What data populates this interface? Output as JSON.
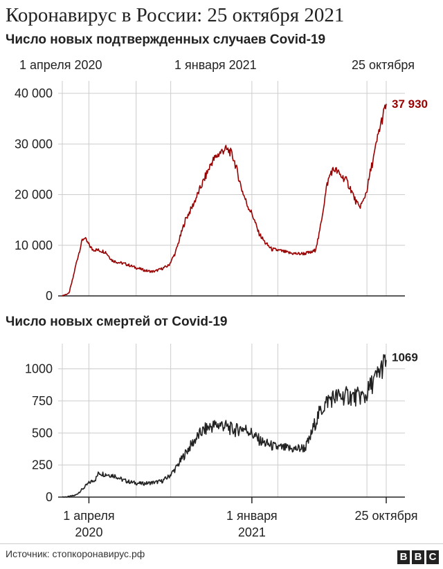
{
  "title": "Коронавирус в России: 25 октября 2021",
  "source": "Источник: стопкоронавирус.рф",
  "logo": [
    "B",
    "B",
    "C"
  ],
  "colors": {
    "cases": "#990000",
    "deaths": "#222222",
    "grid": "#cccccc",
    "axis": "#222222"
  },
  "chart_data": [
    {
      "type": "line",
      "title": "Число новых подтвержденных случаев Covid-19",
      "top_labels": [
        "1 апреля 2020",
        "1 января 2021",
        "25 октября"
      ],
      "ylim": [
        0,
        40000
      ],
      "y_ticks": [
        0,
        10000,
        20000,
        30000,
        40000
      ],
      "y_tick_labels": [
        "0",
        "10 000",
        "20 000",
        "30 000",
        "40 000"
      ],
      "last_value_label": "37 930",
      "grid": true,
      "x_unit": "days since 2020-03-22",
      "series": [
        {
          "values": [
            [
              0,
              50
            ],
            [
              10,
              500
            ],
            [
              16,
              3500
            ],
            [
              21,
              6500
            ],
            [
              26,
              9000
            ],
            [
              30,
              11000
            ],
            [
              33,
              11500
            ],
            [
              38,
              10500
            ],
            [
              45,
              9200
            ],
            [
              55,
              9000
            ],
            [
              65,
              8700
            ],
            [
              75,
              7000
            ],
            [
              85,
              6600
            ],
            [
              95,
              6300
            ],
            [
              110,
              5600
            ],
            [
              125,
              5000
            ],
            [
              135,
              4800
            ],
            [
              140,
              4900
            ],
            [
              150,
              5400
            ],
            [
              160,
              6000
            ],
            [
              170,
              8500
            ],
            [
              178,
              12000
            ],
            [
              185,
              15000
            ],
            [
              195,
              17500
            ],
            [
              205,
              20500
            ],
            [
              215,
              23500
            ],
            [
              225,
              26500
            ],
            [
              235,
              28000
            ],
            [
              244,
              29000
            ],
            [
              252,
              28500
            ],
            [
              258,
              27000
            ],
            [
              264,
              24000
            ],
            [
              270,
              21000
            ],
            [
              278,
              18000
            ],
            [
              286,
              16000
            ],
            [
              295,
              12500
            ],
            [
              305,
              10500
            ],
            [
              315,
              9200
            ],
            [
              325,
              9000
            ],
            [
              340,
              8500
            ],
            [
              355,
              8300
            ],
            [
              365,
              8400
            ],
            [
              375,
              8600
            ],
            [
              380,
              9000
            ],
            [
              386,
              12000
            ],
            [
              392,
              17000
            ],
            [
              398,
              22000
            ],
            [
              404,
              24500
            ],
            [
              410,
              25000
            ],
            [
              418,
              23800
            ],
            [
              426,
              23000
            ],
            [
              434,
              21000
            ],
            [
              440,
              19000
            ],
            [
              446,
              17500
            ],
            [
              452,
              18500
            ],
            [
              458,
              21000
            ],
            [
              464,
              25000
            ],
            [
              470,
              28500
            ],
            [
              476,
              32500
            ],
            [
              482,
              35500
            ],
            [
              487,
              37930
            ]
          ]
        }
      ]
    },
    {
      "type": "line",
      "title": "Число новых смертей от Covid-19",
      "x_tick_labels": [
        {
          "x": 40,
          "line1": "1 апреля",
          "line2": "2020"
        },
        {
          "x": 285,
          "line1": "1 января",
          "line2": "2021"
        },
        {
          "x": 487,
          "line1": "25 октября",
          "line2": ""
        }
      ],
      "ylim": [
        0,
        1100
      ],
      "y_ticks": [
        0,
        250,
        500,
        750,
        1000
      ],
      "y_tick_labels": [
        "0",
        "250",
        "500",
        "750",
        "1000"
      ],
      "last_value_label": "1069",
      "grid": true,
      "x_unit": "days since 2020-03-22",
      "series": [
        {
          "values": [
            [
              0,
              0
            ],
            [
              10,
              3
            ],
            [
              20,
              15
            ],
            [
              30,
              60
            ],
            [
              40,
              110
            ],
            [
              50,
              140
            ],
            [
              55,
              190
            ],
            [
              62,
              180
            ],
            [
              70,
              175
            ],
            [
              80,
              165
            ],
            [
              90,
              135
            ],
            [
              100,
              120
            ],
            [
              110,
              110
            ],
            [
              120,
              105
            ],
            [
              130,
              110
            ],
            [
              140,
              115
            ],
            [
              150,
              125
            ],
            [
              160,
              160
            ],
            [
              170,
              220
            ],
            [
              180,
              300
            ],
            [
              190,
              380
            ],
            [
              200,
              450
            ],
            [
              210,
              510
            ],
            [
              220,
              545
            ],
            [
              230,
              560
            ],
            [
              240,
              565
            ],
            [
              250,
              540
            ],
            [
              260,
              520
            ],
            [
              270,
              540
            ],
            [
              280,
              520
            ],
            [
              290,
              470
            ],
            [
              300,
              430
            ],
            [
              310,
              410
            ],
            [
              320,
              390
            ],
            [
              335,
              380
            ],
            [
              350,
              375
            ],
            [
              365,
              385
            ],
            [
              372,
              450
            ],
            [
              378,
              550
            ],
            [
              385,
              640
            ],
            [
              392,
              700
            ],
            [
              400,
              760
            ],
            [
              410,
              780
            ],
            [
              420,
              785
            ],
            [
              430,
              790
            ],
            [
              440,
              780
            ],
            [
              450,
              790
            ],
            [
              455,
              775
            ],
            [
              460,
              830
            ],
            [
              466,
              890
            ],
            [
              472,
              930
            ],
            [
              478,
              990
            ],
            [
              484,
              1040
            ],
            [
              487,
              1069
            ]
          ]
        }
      ]
    }
  ]
}
